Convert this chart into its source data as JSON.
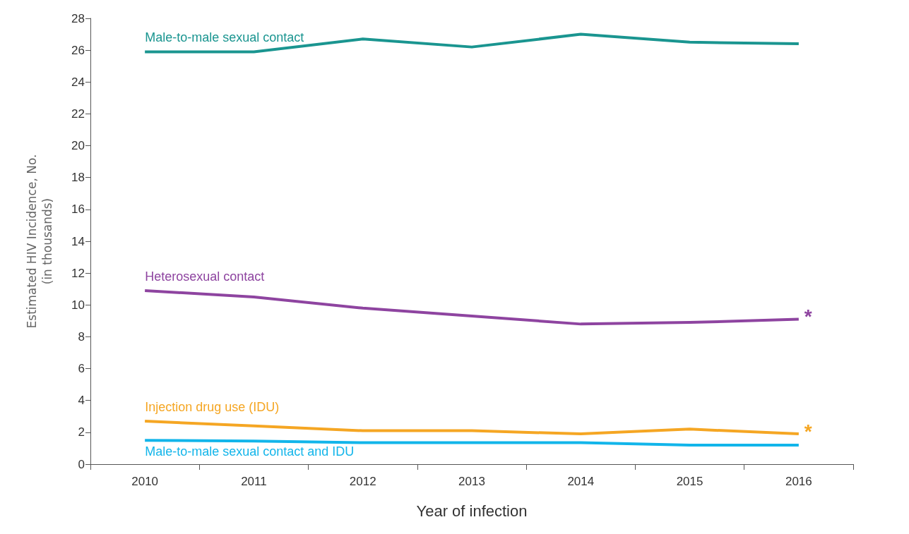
{
  "chart_data": {
    "type": "line",
    "xlabel": "Year of infection",
    "ylabel": "Estimated HIV Incidence, No.\n(in thousands)",
    "categories": [
      "2010",
      "2011",
      "2012",
      "2013",
      "2014",
      "2015",
      "2016"
    ],
    "ylim": [
      0,
      28
    ],
    "yticks": [
      0,
      2,
      4,
      6,
      8,
      10,
      12,
      14,
      16,
      18,
      20,
      22,
      24,
      26,
      28
    ],
    "grid": false,
    "legend": false,
    "marker": "none",
    "series": [
      {
        "name": "Male-to-male sexual contact",
        "color": "#1a9590",
        "values": [
          25.9,
          25.9,
          26.7,
          26.2,
          27.0,
          26.5,
          26.4
        ]
      },
      {
        "name": "Heterosexual contact",
        "color": "#8e44a0",
        "values": [
          10.9,
          10.5,
          9.8,
          9.3,
          8.8,
          8.9,
          9.1
        ]
      },
      {
        "name": "Injection drug use (IDU)",
        "color": "#f5a623",
        "values": [
          2.7,
          2.4,
          2.1,
          2.1,
          1.9,
          2.2,
          1.9
        ]
      },
      {
        "name": "Male-to-male sexual contact and IDU",
        "color": "#12b5ea",
        "values": [
          1.5,
          1.45,
          1.35,
          1.35,
          1.35,
          1.2,
          1.2
        ]
      }
    ],
    "annotations": [
      {
        "text": "*",
        "x": "2016",
        "y": 9.1
      },
      {
        "text": "*",
        "x": "2016",
        "y": 1.9
      }
    ]
  }
}
